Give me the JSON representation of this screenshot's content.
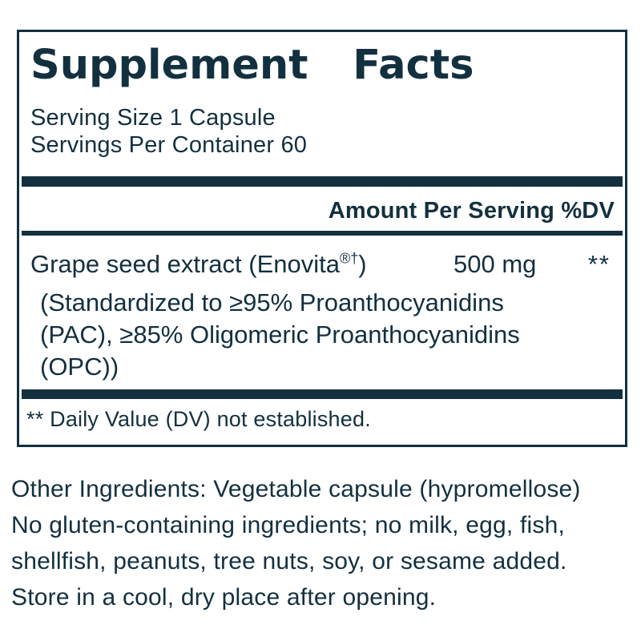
{
  "ink_color": "#13303f",
  "panel": {
    "title": "Supplement Facts",
    "serving_size": "Serving Size 1 Capsule",
    "servings_per_container": "Servings Per Container 60",
    "column_header": "Amount Per Serving %DV",
    "rows": [
      {
        "name": "Grape seed extract (Enovita",
        "name_superscript": "®†",
        "name_suffix": ")",
        "amount": "500 mg",
        "dv": "**",
        "description_lines": [
          "(Standardized to ≥95% Proanthocyanidins",
          "(PAC), ≥85% Oligomeric Proanthocyanidins",
          "(OPC))"
        ]
      }
    ],
    "footnote": "** Daily Value (DV) not established."
  },
  "other_info": {
    "other_ingredients": "Other Ingredients: Vegetable capsule (hypromellose)",
    "allergen_statement": "No gluten-containing ingredients; no milk, egg, fish, shellfish, peanuts, tree nuts, soy, or sesame added.",
    "storage": "Store in a cool, dry place after opening."
  }
}
